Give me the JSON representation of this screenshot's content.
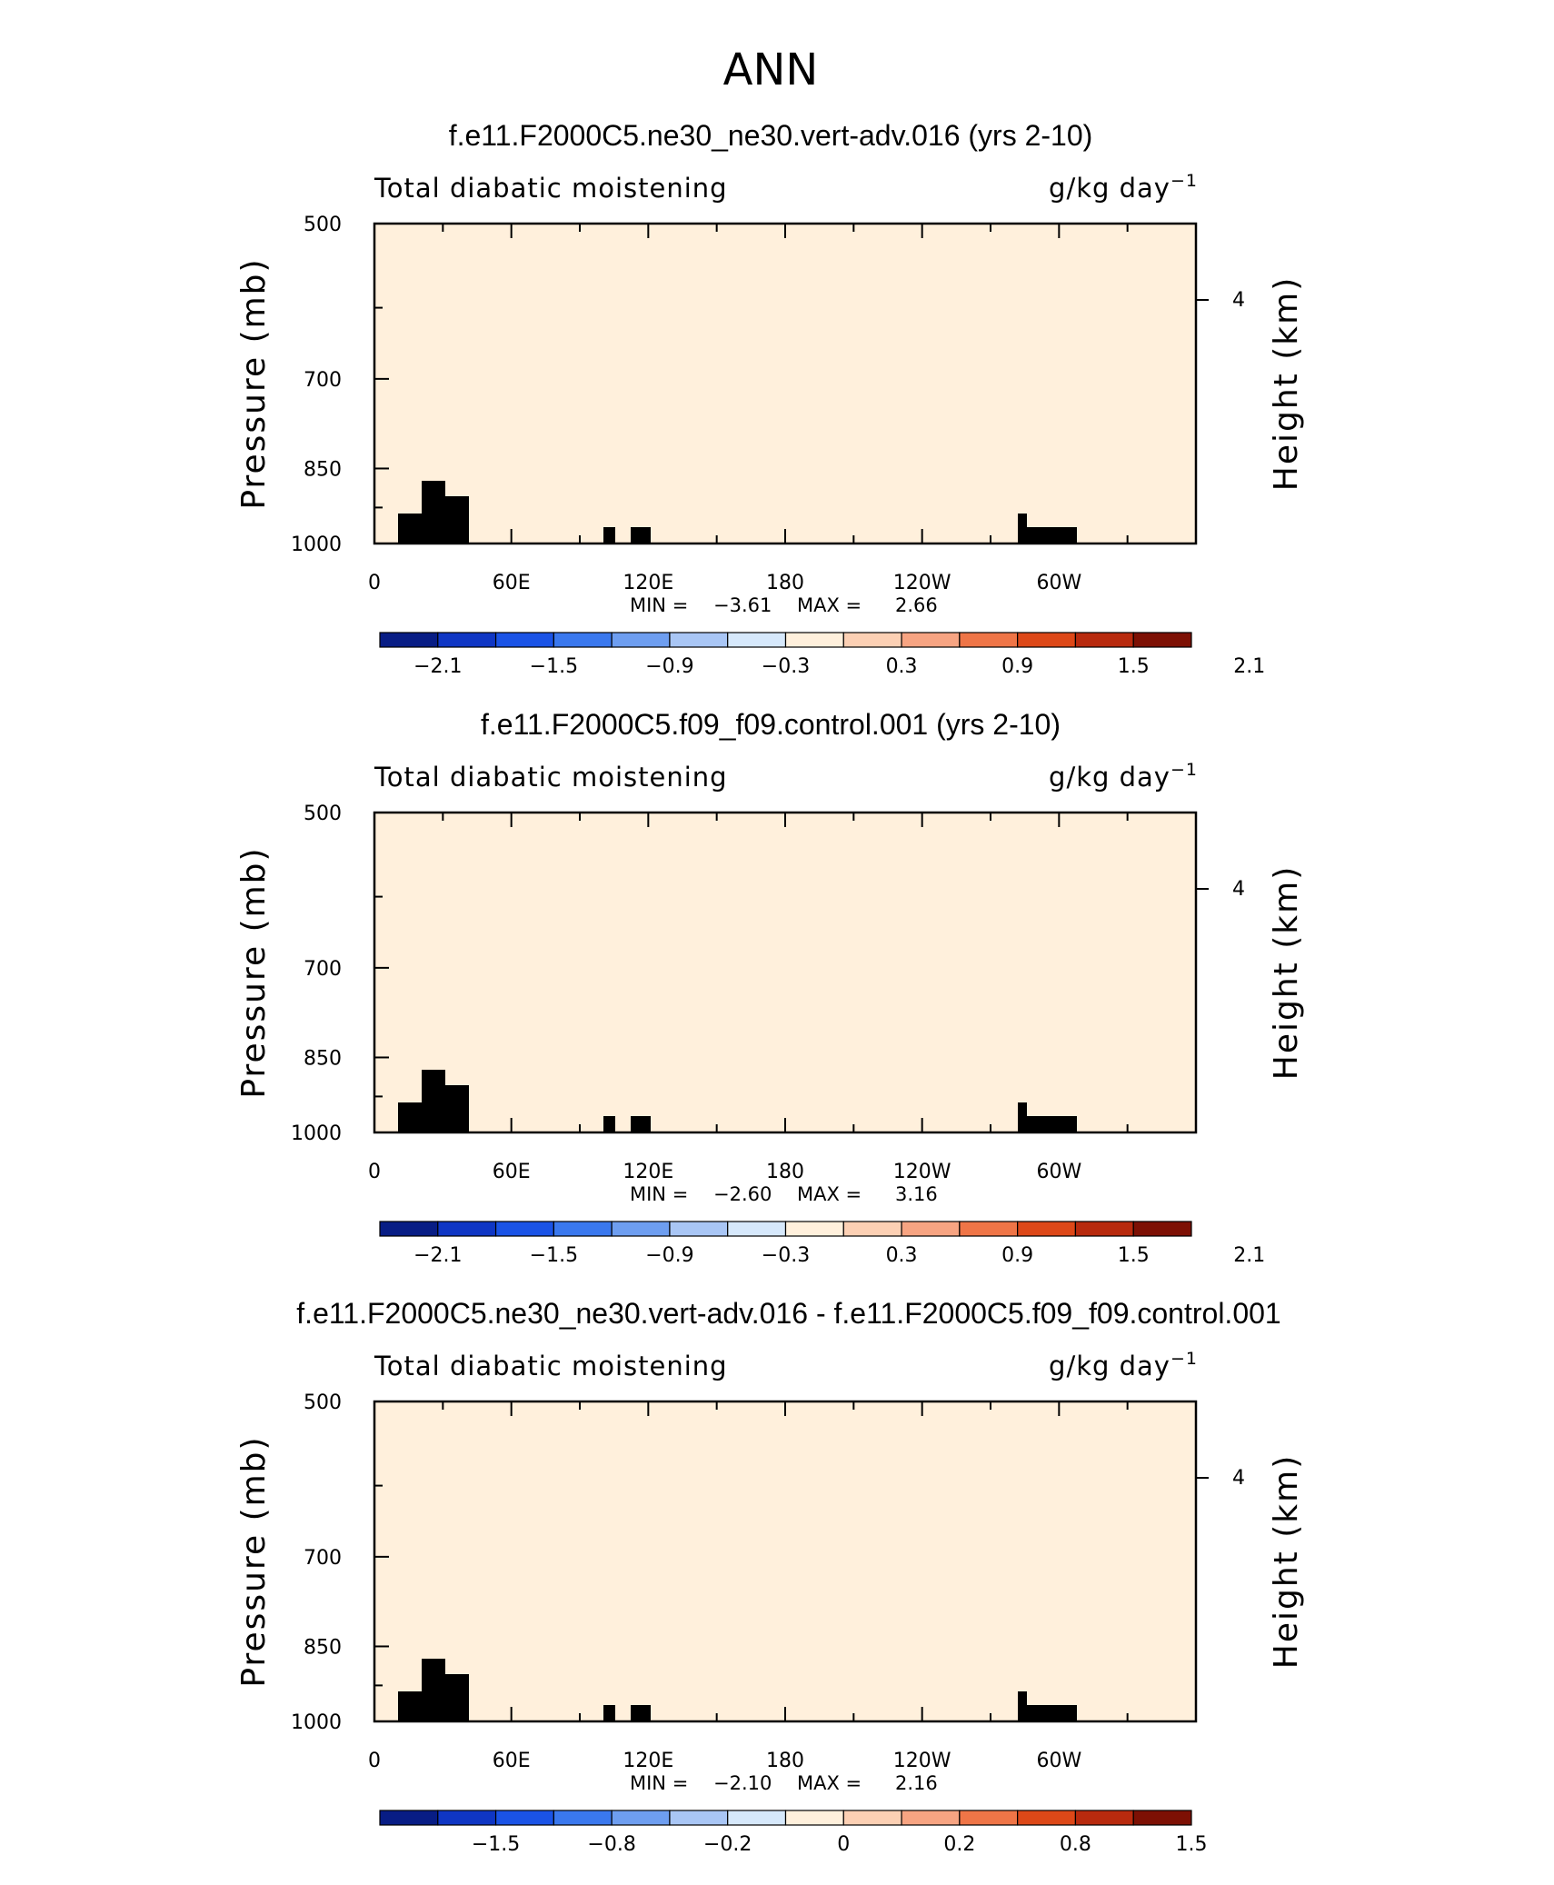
{
  "page": {
    "title": "ANN"
  },
  "colors": {
    "levels_main": [
      "#081d85",
      "#0f36c4",
      "#1a53e6",
      "#3a78ee",
      "#6e9ef0",
      "#a9c6f5",
      "#d6e8fb",
      "#fff0dc",
      "#fcd0b4",
      "#f7a482",
      "#ef7547",
      "#dd4818",
      "#b82a0e",
      "#7d1004"
    ],
    "levels_diff": [
      "#081d85",
      "#0f36c4",
      "#1a53e6",
      "#3a78ee",
      "#6e9ef0",
      "#a9c6f5",
      "#d6e8fb",
      "#fff0dc",
      "#fcd0b4",
      "#f7a482",
      "#ef7547",
      "#dd4818",
      "#b82a0e",
      "#7d1004"
    ]
  },
  "chart_data": [
    {
      "type": "heatmap",
      "title": "f.e11.F2000C5.ne30_ne30.vert-adv.016 (yrs 2-10)",
      "left_string": "Total diabatic moistening",
      "units": "g/kg day",
      "units_exp": "−1",
      "ylabel": "Pressure (mb)",
      "ylabel_right": "Height (km)",
      "xticks": [
        "0",
        "60E",
        "120E",
        "180",
        "120W",
        "60W"
      ],
      "yticks": [
        "500",
        "700",
        "850",
        "1000"
      ],
      "right_ticks": [
        "4"
      ],
      "ylim": [
        1000,
        500
      ],
      "stats": {
        "min_label": "MIN =",
        "min": "−3.61",
        "max_label": "MAX =",
        "max": "2.66"
      },
      "colorbar_labels": [
        "−2.1",
        "−1.5",
        "−0.9",
        "−0.3",
        "0.3",
        "0.9",
        "1.5",
        "2.1"
      ]
    },
    {
      "type": "heatmap",
      "title": "f.e11.F2000C5.f09_f09.control.001 (yrs 2-10)",
      "left_string": "Total diabatic moistening",
      "units": "g/kg day",
      "units_exp": "−1",
      "ylabel": "Pressure (mb)",
      "ylabel_right": "Height (km)",
      "xticks": [
        "0",
        "60E",
        "120E",
        "180",
        "120W",
        "60W"
      ],
      "yticks": [
        "500",
        "700",
        "850",
        "1000"
      ],
      "right_ticks": [
        "4"
      ],
      "ylim": [
        1000,
        500
      ],
      "stats": {
        "min_label": "MIN =",
        "min": "−2.60",
        "max_label": "MAX =",
        "max": "3.16"
      },
      "colorbar_labels": [
        "−2.1",
        "−1.5",
        "−0.9",
        "−0.3",
        "0.3",
        "0.9",
        "1.5",
        "2.1"
      ]
    },
    {
      "type": "heatmap",
      "title": "f.e11.F2000C5.ne30_ne30.vert-adv.016 - f.e11.F2000C5.f09_f09.control.001",
      "left_string": "Total diabatic moistening",
      "units": "g/kg day",
      "units_exp": "−1",
      "ylabel": "Pressure (mb)",
      "ylabel_right": "Height (km)",
      "xticks": [
        "0",
        "60E",
        "120E",
        "180",
        "120W",
        "60W"
      ],
      "yticks": [
        "500",
        "700",
        "850",
        "1000"
      ],
      "right_ticks": [
        "4"
      ],
      "ylim": [
        1000,
        500
      ],
      "stats": {
        "min_label": "MIN =",
        "min": "−2.10",
        "max_label": "MAX =",
        "max": "2.16"
      },
      "colorbar_labels": [
        "−1.5",
        "−0.8",
        "−0.2",
        "0",
        "0.2",
        "0.8",
        "1.5"
      ]
    }
  ]
}
